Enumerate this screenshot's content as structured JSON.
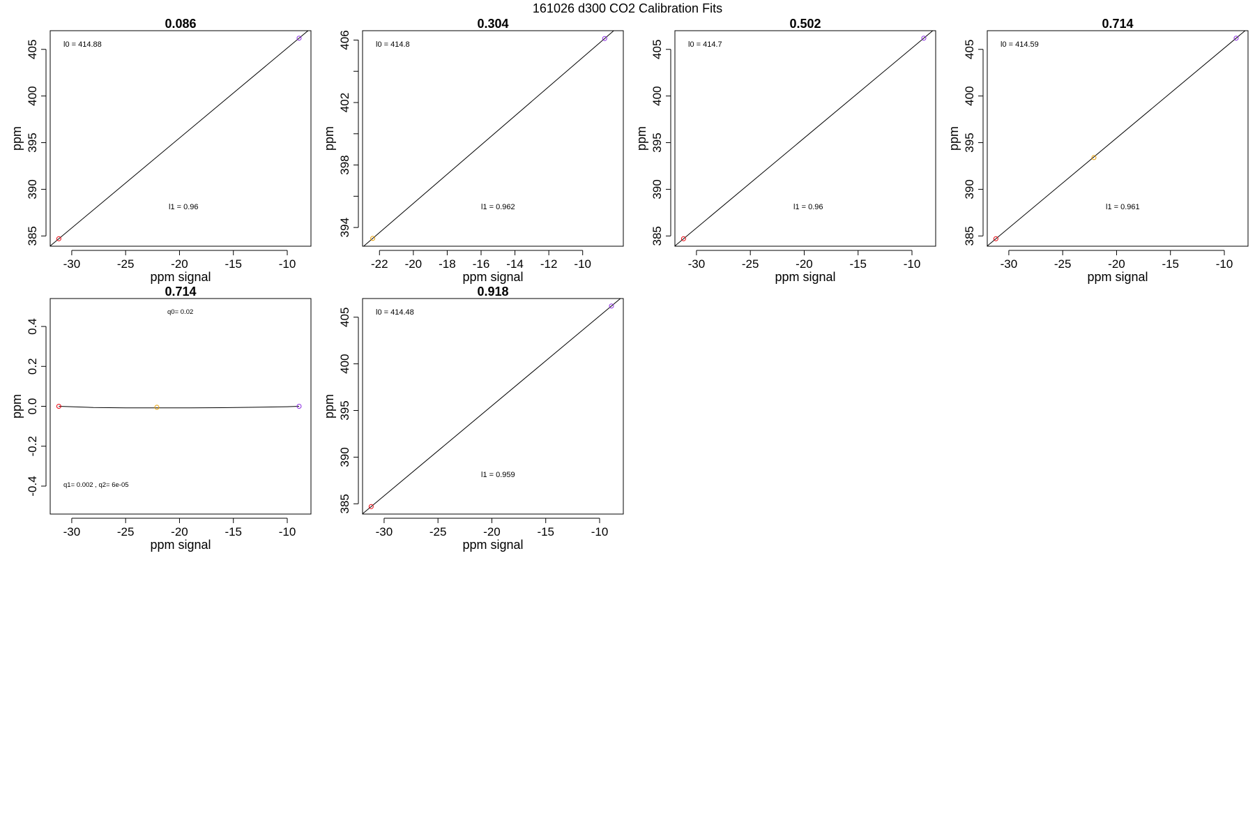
{
  "figure": {
    "title": "161026   d300   CO2 Calibration Fits"
  },
  "colors": {
    "background": "#ffffff",
    "axes": "#000000",
    "red": "#e8000b",
    "orange": "#e89d00",
    "purple": "#8b2be2"
  },
  "chart_data": [
    {
      "type": "scatter",
      "title": "0.086",
      "xlabel": "ppm signal",
      "ylabel": "ppm",
      "xlim": [
        -32.0,
        -7.8
      ],
      "ylim": [
        383.9,
        407.0
      ],
      "xticks": [
        -30,
        -25,
        -20,
        -15,
        -10
      ],
      "yticks": [
        385,
        390,
        395,
        400,
        405
      ],
      "points": [
        {
          "x": -31.2,
          "y": 384.7,
          "color": "red"
        },
        {
          "x": -8.9,
          "y": 406.2,
          "color": "purple"
        }
      ],
      "fit": {
        "kind": "linear",
        "l0": 414.88,
        "l1": 0.96
      },
      "annotations": [
        {
          "label": "l0 = ",
          "value": "414.88"
        },
        {
          "label": "l1 = ",
          "value": "0.96"
        }
      ]
    },
    {
      "type": "scatter",
      "title": "0.304",
      "xlabel": "ppm signal",
      "ylabel": "ppm",
      "xlim": [
        -23.0,
        -7.6
      ],
      "ylim": [
        392.8,
        406.6
      ],
      "xticks": [
        -22,
        -20,
        -18,
        -16,
        -14,
        -12,
        -10
      ],
      "yticks": [
        394,
        398,
        402,
        406
      ],
      "yticks_minor": [
        396,
        400,
        404
      ],
      "points": [
        {
          "x": -22.4,
          "y": 393.3,
          "color": "orange"
        },
        {
          "x": -8.7,
          "y": 406.1,
          "color": "purple"
        }
      ],
      "fit": {
        "kind": "linear",
        "l0": 414.8,
        "l1": 0.962
      },
      "annotations": [
        {
          "label": "l0 = ",
          "value": "414.8"
        },
        {
          "label": "l1 = ",
          "value": "0.962"
        }
      ]
    },
    {
      "type": "scatter",
      "title": "0.502",
      "xlabel": "ppm signal",
      "ylabel": "ppm",
      "xlim": [
        -32.0,
        -7.8
      ],
      "ylim": [
        383.9,
        407.0
      ],
      "xticks": [
        -30,
        -25,
        -20,
        -15,
        -10
      ],
      "yticks": [
        385,
        390,
        395,
        400,
        405
      ],
      "points": [
        {
          "x": -31.2,
          "y": 384.7,
          "color": "red"
        },
        {
          "x": -8.9,
          "y": 406.2,
          "color": "purple"
        }
      ],
      "fit": {
        "kind": "linear",
        "l0": 414.7,
        "l1": 0.96
      },
      "annotations": [
        {
          "label": "l0 = ",
          "value": "414.7"
        },
        {
          "label": "l1 = ",
          "value": "0.96"
        }
      ]
    },
    {
      "type": "scatter",
      "title": "0.714",
      "xlabel": "ppm signal",
      "ylabel": "ppm",
      "xlim": [
        -32.0,
        -7.8
      ],
      "ylim": [
        383.9,
        407.0
      ],
      "xticks": [
        -30,
        -25,
        -20,
        -15,
        -10
      ],
      "yticks": [
        385,
        390,
        395,
        400,
        405
      ],
      "points": [
        {
          "x": -31.2,
          "y": 384.7,
          "color": "red"
        },
        {
          "x": -22.1,
          "y": 393.4,
          "color": "orange"
        },
        {
          "x": -8.9,
          "y": 406.2,
          "color": "purple"
        }
      ],
      "fit": {
        "kind": "linear",
        "l0": 414.59,
        "l1": 0.961
      },
      "annotations": [
        {
          "label": "l0 = ",
          "value": "414.59"
        },
        {
          "label": "l1 = ",
          "value": "0.961"
        }
      ]
    },
    {
      "type": "scatter",
      "title": "0.714",
      "xlabel": "ppm signal",
      "ylabel": "ppm",
      "xlim": [
        -32.0,
        -7.8
      ],
      "ylim": [
        -0.54,
        0.54
      ],
      "xticks": [
        -30,
        -25,
        -20,
        -15,
        -10
      ],
      "yticks": [
        -0.4,
        -0.2,
        0.0,
        0.2,
        0.4
      ],
      "ytick_labels": [
        "-0.4",
        "-0.2",
        "0.0",
        "0.2",
        "0.4"
      ],
      "points": [
        {
          "x": -31.2,
          "y": 0.0,
          "color": "red"
        },
        {
          "x": -22.1,
          "y": -0.005,
          "color": "orange"
        },
        {
          "x": -8.9,
          "y": 0.0,
          "color": "purple"
        }
      ],
      "fit": {
        "kind": "curve",
        "x": [
          -31.2,
          -28,
          -25,
          -22.1,
          -19,
          -16,
          -13,
          -10,
          -8.9
        ],
        "y": [
          0.0,
          -0.006,
          -0.008,
          -0.008,
          -0.008,
          -0.007,
          -0.005,
          -0.002,
          0.0
        ]
      },
      "annotations": [
        {
          "label": "q0= ",
          "value": "0.02"
        },
        {
          "label": "q1= ",
          "value": "0.002 , q2= 6e-05"
        }
      ]
    },
    {
      "type": "scatter",
      "title": "0.918",
      "xlabel": "ppm signal",
      "ylabel": "ppm",
      "xlim": [
        -32.0,
        -7.8
      ],
      "ylim": [
        383.9,
        407.0
      ],
      "xticks": [
        -30,
        -25,
        -20,
        -15,
        -10
      ],
      "yticks": [
        385,
        390,
        395,
        400,
        405
      ],
      "points": [
        {
          "x": -31.2,
          "y": 384.7,
          "color": "red"
        },
        {
          "x": -8.9,
          "y": 406.2,
          "color": "purple"
        }
      ],
      "fit": {
        "kind": "linear",
        "l0": 414.48,
        "l1": 0.959
      },
      "annotations": [
        {
          "label": "l0 = ",
          "value": "414.48"
        },
        {
          "label": "l1 = ",
          "value": "0.959"
        }
      ]
    }
  ]
}
